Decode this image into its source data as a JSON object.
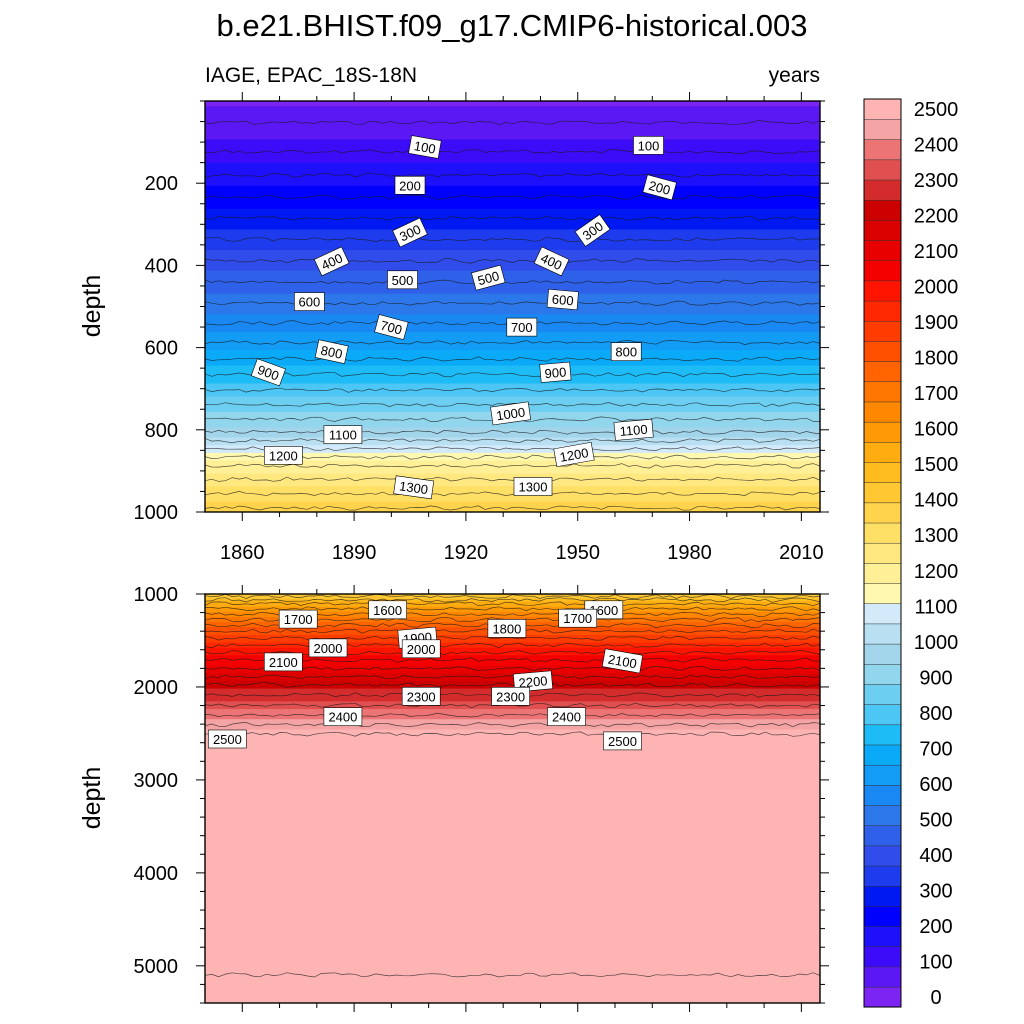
{
  "chart_data": {
    "type": "contour",
    "title": "b.e21.BHIST.f09_g17.CMIP6-historical.003",
    "left_subtitle": "IAGE, EPAC_18S-18N",
    "right_subtitle": "years",
    "ylabel": "depth",
    "x_ticks": [
      "1860",
      "1890",
      "1920",
      "1950",
      "1980",
      "2010"
    ],
    "x_tick_values": [
      1860,
      1890,
      1920,
      1950,
      1980,
      2010
    ],
    "xlim": [
      1850,
      2015
    ],
    "panels": [
      {
        "name": "upper",
        "ylim": [
          0,
          1000
        ],
        "y_ticks": [
          "200",
          "400",
          "600",
          "800",
          "1000"
        ],
        "y_tick_values": [
          200,
          400,
          600,
          800,
          1000
        ],
        "age_at_depth": [
          [
            0,
            20
          ],
          [
            100,
            90
          ],
          [
            200,
            190
          ],
          [
            300,
            300
          ],
          [
            400,
            410
          ],
          [
            500,
            520
          ],
          [
            600,
            640
          ],
          [
            700,
            790
          ],
          [
            800,
            950
          ],
          [
            890,
            1200
          ],
          [
            1000,
            1380
          ]
        ],
        "contour_labels": [
          {
            "text": "100",
            "year": 1909,
            "depth": 112,
            "angle": 10
          },
          {
            "text": "100",
            "year": 1969,
            "depth": 108,
            "angle": 0
          },
          {
            "text": "200",
            "year": 1905,
            "depth": 205,
            "angle": 0
          },
          {
            "text": "200",
            "year": 1972,
            "depth": 210,
            "angle": 15
          },
          {
            "text": "300",
            "year": 1905,
            "depth": 320,
            "angle": -25
          },
          {
            "text": "300",
            "year": 1954,
            "depth": 315,
            "angle": -35
          },
          {
            "text": "400",
            "year": 1884,
            "depth": 390,
            "angle": -25
          },
          {
            "text": "400",
            "year": 1943,
            "depth": 390,
            "angle": 25
          },
          {
            "text": "500",
            "year": 1903,
            "depth": 435,
            "angle": 0
          },
          {
            "text": "500",
            "year": 1926,
            "depth": 430,
            "angle": -15
          },
          {
            "text": "600",
            "year": 1878,
            "depth": 488,
            "angle": 0
          },
          {
            "text": "600",
            "year": 1946,
            "depth": 483,
            "angle": 5
          },
          {
            "text": "700",
            "year": 1900,
            "depth": 550,
            "angle": 15
          },
          {
            "text": "700",
            "year": 1935,
            "depth": 550,
            "angle": 0
          },
          {
            "text": "800",
            "year": 1884,
            "depth": 610,
            "angle": 12
          },
          {
            "text": "800",
            "year": 1963,
            "depth": 610,
            "angle": 0
          },
          {
            "text": "900",
            "year": 1867,
            "depth": 660,
            "angle": 20
          },
          {
            "text": "900",
            "year": 1944,
            "depth": 660,
            "angle": -5
          },
          {
            "text": "1000",
            "year": 1932,
            "depth": 760,
            "angle": -8
          },
          {
            "text": "1100",
            "year": 1887,
            "depth": 812,
            "angle": 0
          },
          {
            "text": "1100",
            "year": 1965,
            "depth": 800,
            "angle": -5
          },
          {
            "text": "1200",
            "year": 1871,
            "depth": 862,
            "angle": 0
          },
          {
            "text": "1200",
            "year": 1949,
            "depth": 860,
            "angle": -10
          },
          {
            "text": "1300",
            "year": 1906,
            "depth": 940,
            "angle": 8
          },
          {
            "text": "1300",
            "year": 1938,
            "depth": 938,
            "angle": 0
          }
        ]
      },
      {
        "name": "lower",
        "ylim": [
          1000,
          5400
        ],
        "y_ticks": [
          "1000",
          "2000",
          "3000",
          "4000",
          "5000"
        ],
        "y_tick_values": [
          1000,
          2000,
          3000,
          4000,
          5000
        ],
        "age_at_depth": [
          [
            1000,
            1380
          ],
          [
            1100,
            1530
          ],
          [
            1250,
            1680
          ],
          [
            1400,
            1820
          ],
          [
            1550,
            1930
          ],
          [
            1700,
            2040
          ],
          [
            1850,
            2130
          ],
          [
            2000,
            2230
          ],
          [
            2200,
            2330
          ],
          [
            2400,
            2440
          ],
          [
            2560,
            2530
          ],
          [
            5400,
            2560
          ]
        ],
        "contour_labels": [
          {
            "text": "1700",
            "year": 1875,
            "depth": 1270,
            "angle": 0
          },
          {
            "text": "1600",
            "year": 1899,
            "depth": 1170,
            "angle": 0
          },
          {
            "text": "1600",
            "year": 1957,
            "depth": 1170,
            "angle": 0
          },
          {
            "text": "1700",
            "year": 1950,
            "depth": 1260,
            "angle": 0
          },
          {
            "text": "1800",
            "year": 1931,
            "depth": 1370,
            "angle": 0
          },
          {
            "text": "1900",
            "year": 1907,
            "depth": 1470,
            "angle": -5
          },
          {
            "text": "2000",
            "year": 1883,
            "depth": 1580,
            "angle": 0
          },
          {
            "text": "2000",
            "year": 1908,
            "depth": 1590,
            "angle": 0
          },
          {
            "text": "2100",
            "year": 1871,
            "depth": 1730,
            "angle": 0
          },
          {
            "text": "2100",
            "year": 1962,
            "depth": 1720,
            "angle": 10
          },
          {
            "text": "2200",
            "year": 1938,
            "depth": 1940,
            "angle": -5
          },
          {
            "text": "2300",
            "year": 1908,
            "depth": 2100,
            "angle": 0
          },
          {
            "text": "2300",
            "year": 1932,
            "depth": 2100,
            "angle": 0
          },
          {
            "text": "2400",
            "year": 1887,
            "depth": 2320,
            "angle": 0
          },
          {
            "text": "2400",
            "year": 1947,
            "depth": 2320,
            "angle": 0
          },
          {
            "text": "2500",
            "year": 1856,
            "depth": 2560,
            "angle": 0
          },
          {
            "text": "2500",
            "year": 1962,
            "depth": 2580,
            "angle": 0
          }
        ]
      }
    ],
    "colorbar": {
      "levels": [
        0,
        100,
        200,
        300,
        400,
        500,
        600,
        700,
        800,
        900,
        1000,
        1100,
        1200,
        1300,
        1400,
        1500,
        1600,
        1700,
        1800,
        1900,
        2000,
        2100,
        2200,
        2300,
        2400,
        2500
      ],
      "labels": [
        "0",
        "100",
        "200",
        "300",
        "400",
        "500",
        "600",
        "700",
        "800",
        "900",
        "1000",
        "1100",
        "1200",
        "1300",
        "1400",
        "1500",
        "1600",
        "1700",
        "1800",
        "1900",
        "2000",
        "2100",
        "2200",
        "2300",
        "2400",
        "2500"
      ],
      "colors": [
        "#7c24f2",
        "#5c18f4",
        "#3c0cf8",
        "#1e10fa",
        "#0000ff",
        "#0018f2",
        "#1e3ced",
        "#304cea",
        "#2f60e9",
        "#2c78ea",
        "#1a88f2",
        "#129cf6",
        "#0aaaf8",
        "#1ebcf6",
        "#4cc6f4",
        "#6ccef0",
        "#92d6ee",
        "#a2d4ea",
        "#b8e0f2",
        "#d2eafa",
        "#fff8b0",
        "#fff098",
        "#ffe880",
        "#ffe066",
        "#ffd44c",
        "#ffc832",
        "#ffbc1e",
        "#ffac10",
        "#ff9a06",
        "#ff8800",
        "#ff7600",
        "#ff6400",
        "#ff5000",
        "#ff3c00",
        "#ff2800",
        "#ff1400",
        "#f50000",
        "#e80000",
        "#da0000",
        "#cc0000",
        "#d42c2c",
        "#e05050",
        "#ec7474",
        "#f4a4a4",
        "#ffb4b4"
      ]
    }
  }
}
